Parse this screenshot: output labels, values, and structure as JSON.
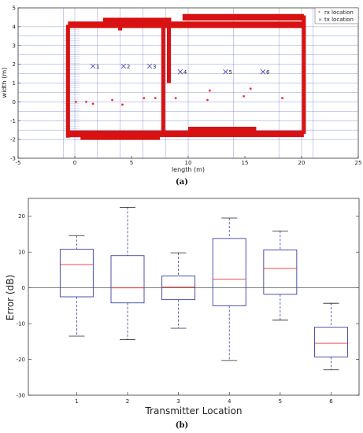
{
  "chart_data": [
    {
      "type": "scatter",
      "panel_label": "(a)",
      "xlabel": "length (m)",
      "ylabel": "width (m)",
      "xlim": [
        -5,
        25
      ],
      "ylim": [
        -3,
        5
      ],
      "x_ticks": [
        "-5",
        "0",
        "5",
        "10",
        "15",
        "20",
        "25"
      ],
      "y_ticks": [
        "-3",
        "-2",
        "-1",
        "0",
        "1",
        "2",
        "3",
        "4",
        "5"
      ],
      "legend": [
        "rx location",
        "tx location"
      ],
      "legend_position": "top-right",
      "series": [
        {
          "name": "rx location",
          "marker": "*",
          "color": "#e8332c",
          "points": [
            [
              0.1,
              0.0
            ],
            [
              1.0,
              0.0
            ],
            [
              1.6,
              -0.1
            ],
            [
              3.3,
              0.1
            ],
            [
              4.2,
              -0.15
            ],
            [
              6.1,
              0.2
            ],
            [
              7.1,
              0.2
            ],
            [
              8.9,
              0.2
            ],
            [
              11.7,
              0.1
            ],
            [
              11.9,
              0.6
            ],
            [
              14.9,
              0.3
            ],
            [
              15.5,
              0.7
            ],
            [
              18.3,
              0.2
            ]
          ]
        },
        {
          "name": "tx location",
          "marker": "x",
          "color": "#3a3fa8",
          "points": [
            [
              1.6,
              1.9,
              "1"
            ],
            [
              4.3,
              1.9,
              "2"
            ],
            [
              6.6,
              1.9,
              "3"
            ],
            [
              9.3,
              1.6,
              "4"
            ],
            [
              13.3,
              1.6,
              "5"
            ],
            [
              16.6,
              1.6,
              "6"
            ]
          ]
        }
      ]
    },
    {
      "type": "box",
      "panel_label": "(b)",
      "xlabel": "Transmitter Location",
      "ylabel": "Error (dB)",
      "ylim": [
        -30,
        25
      ],
      "y_ticks": [
        "-30",
        "-20",
        "-10",
        "0",
        "10",
        "20"
      ],
      "categories": [
        "1",
        "2",
        "3",
        "4",
        "5",
        "6"
      ],
      "boxes": [
        {
          "min": -13.5,
          "q1": -2.5,
          "median": 6.5,
          "q3": 10.8,
          "max": 14.6
        },
        {
          "min": -14.5,
          "q1": -4.2,
          "median": 0.0,
          "q3": 9.0,
          "max": 22.5
        },
        {
          "min": -11.3,
          "q1": -3.3,
          "median": 0.2,
          "q3": 3.3,
          "max": 9.8
        },
        {
          "min": -20.3,
          "q1": -5.0,
          "median": 2.4,
          "q3": 13.8,
          "max": 19.5
        },
        {
          "min": -9.0,
          "q1": -1.8,
          "median": 5.4,
          "q3": 10.6,
          "max": 15.9
        },
        {
          "min": -22.9,
          "q1": -19.3,
          "median": -15.5,
          "q3": -11.0,
          "max": -4.3
        }
      ],
      "box_color": "#3a3fa8",
      "median_color": "#e8332c"
    }
  ]
}
